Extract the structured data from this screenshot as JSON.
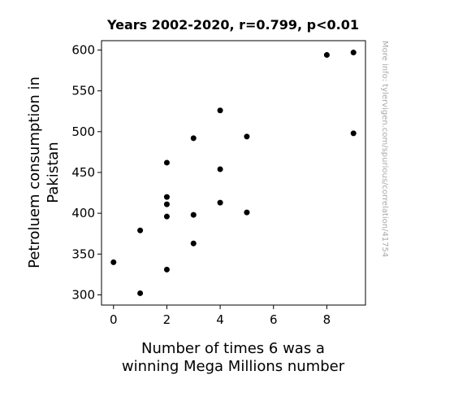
{
  "chart_data": {
    "type": "scatter",
    "title": "Years 2002-2020, r=0.799, p<0.01",
    "xlabel_lines": [
      "Number of times 6 was a",
      "winning Mega Millions number"
    ],
    "ylabel_lines": [
      "Petroluem consumption in",
      "Pakistan"
    ],
    "watermark": "More info: tylervigen.com/spurious/correlation/41754",
    "xlim": [
      -0.45,
      9.45
    ],
    "ylim": [
      287.5,
      611.5
    ],
    "xticks": [
      0,
      2,
      4,
      6,
      8
    ],
    "yticks": [
      300,
      350,
      400,
      450,
      500,
      550,
      600
    ],
    "grid": false,
    "marker_color": "#000000",
    "points": [
      {
        "x": 0,
        "y": 340
      },
      {
        "x": 1,
        "y": 302
      },
      {
        "x": 1,
        "y": 379
      },
      {
        "x": 2,
        "y": 331
      },
      {
        "x": 2,
        "y": 396
      },
      {
        "x": 2,
        "y": 411
      },
      {
        "x": 2,
        "y": 420
      },
      {
        "x": 2,
        "y": 462
      },
      {
        "x": 3,
        "y": 363
      },
      {
        "x": 3,
        "y": 398
      },
      {
        "x": 3,
        "y": 492
      },
      {
        "x": 4,
        "y": 413
      },
      {
        "x": 4,
        "y": 454
      },
      {
        "x": 4,
        "y": 526
      },
      {
        "x": 5,
        "y": 401
      },
      {
        "x": 5,
        "y": 494
      },
      {
        "x": 8,
        "y": 594
      },
      {
        "x": 9,
        "y": 597
      },
      {
        "x": 9,
        "y": 498
      }
    ]
  }
}
